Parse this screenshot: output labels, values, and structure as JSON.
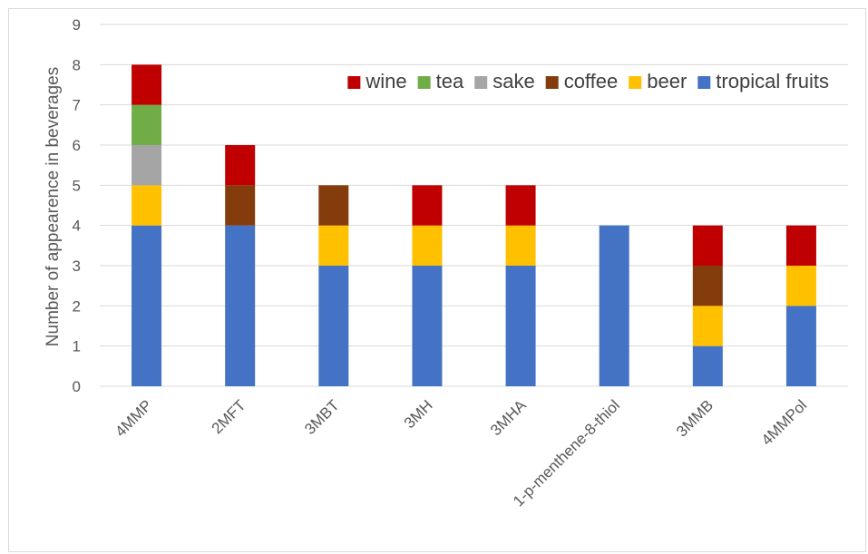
{
  "chart_data": {
    "type": "bar",
    "stacked": true,
    "title": "",
    "xlabel": "",
    "ylabel": "Number of appearence in beverages",
    "ylim": [
      0,
      9
    ],
    "yticks": [
      0,
      1,
      2,
      3,
      4,
      5,
      6,
      7,
      8,
      9
    ],
    "grid": true,
    "legend_position": "top-right",
    "categories": [
      "4MMP",
      "2MFT",
      "3MBT",
      "3MH",
      "3MHA",
      "1-p-menthene-8-thiol",
      "3MMB",
      "4MMPol"
    ],
    "series": [
      {
        "name": "tropical fruits",
        "color": "#4472c4",
        "values": [
          4,
          4,
          3,
          3,
          3,
          4,
          1,
          2
        ]
      },
      {
        "name": "beer",
        "color": "#ffc000",
        "values": [
          1,
          0,
          1,
          1,
          1,
          0,
          1,
          1
        ]
      },
      {
        "name": "coffee",
        "color": "#843c0c",
        "values": [
          0,
          1,
          1,
          0,
          0,
          0,
          1,
          0
        ]
      },
      {
        "name": "sake",
        "color": "#a5a5a5",
        "values": [
          1,
          0,
          0,
          0,
          0,
          0,
          0,
          0
        ]
      },
      {
        "name": "tea",
        "color": "#70ad47",
        "values": [
          1,
          0,
          0,
          0,
          0,
          0,
          0,
          0
        ]
      },
      {
        "name": "wine",
        "color": "#c00000",
        "values": [
          1,
          1,
          0,
          1,
          1,
          0,
          1,
          1
        ]
      }
    ],
    "legend_order": [
      "wine",
      "tea",
      "sake",
      "coffee",
      "beer",
      "tropical fruits"
    ]
  }
}
